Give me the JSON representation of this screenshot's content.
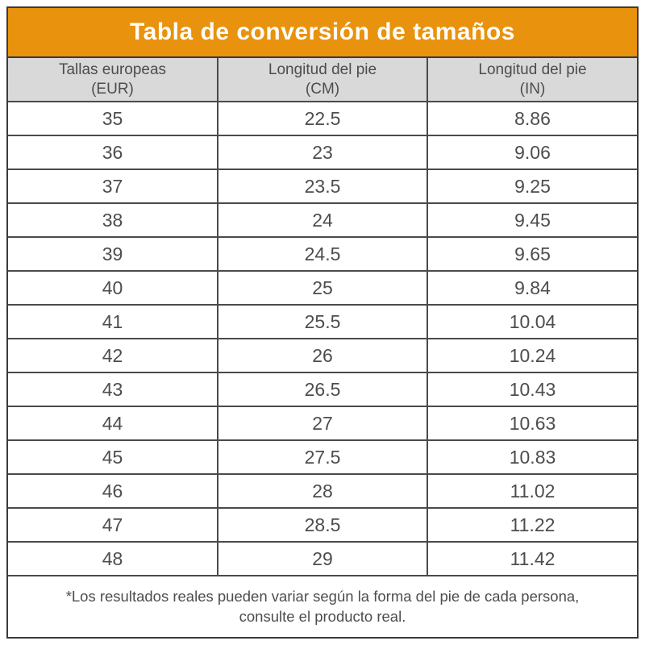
{
  "title": "Tabla de conversión de tamaños",
  "colors": {
    "title_background": "#e8920e",
    "title_text": "#fffdf8",
    "header_background": "#d9d9d9",
    "border": "#4a4a4a",
    "outer_border": "#3b3b3b",
    "body_text": "#4d4d4d"
  },
  "table": {
    "headers": [
      {
        "line1": "Tallas europeas",
        "line2": "(EUR)"
      },
      {
        "line1": "Longitud del pie",
        "line2": "(CM)"
      },
      {
        "line1": "Longitud del pie",
        "line2": "(IN)"
      }
    ],
    "rows": [
      [
        "35",
        "22.5",
        "8.86"
      ],
      [
        "36",
        "23",
        "9.06"
      ],
      [
        "37",
        "23.5",
        "9.25"
      ],
      [
        "38",
        "24",
        "9.45"
      ],
      [
        "39",
        "24.5",
        "9.65"
      ],
      [
        "40",
        "25",
        "9.84"
      ],
      [
        "41",
        "25.5",
        "10.04"
      ],
      [
        "42",
        "26",
        "10.24"
      ],
      [
        "43",
        "26.5",
        "10.43"
      ],
      [
        "44",
        "27",
        "10.63"
      ],
      [
        "45",
        "27.5",
        "10.83"
      ],
      [
        "46",
        "28",
        "11.02"
      ],
      [
        "47",
        "28.5",
        "11.22"
      ],
      [
        "48",
        "29",
        "11.42"
      ]
    ]
  },
  "footnote": {
    "line1": "*Los resultados reales pueden variar según la forma del pie de cada persona,",
    "line2": "consulte el producto real."
  },
  "chart_data": {
    "type": "table",
    "title": "Tabla de conversión de tamaños",
    "columns": [
      "Tallas europeas (EUR)",
      "Longitud del pie (CM)",
      "Longitud del pie (IN)"
    ],
    "rows": [
      [
        35,
        22.5,
        8.86
      ],
      [
        36,
        23,
        9.06
      ],
      [
        37,
        23.5,
        9.25
      ],
      [
        38,
        24,
        9.45
      ],
      [
        39,
        24.5,
        9.65
      ],
      [
        40,
        25,
        9.84
      ],
      [
        41,
        25.5,
        10.04
      ],
      [
        42,
        26,
        10.24
      ],
      [
        43,
        26.5,
        10.43
      ],
      [
        44,
        27,
        10.63
      ],
      [
        45,
        27.5,
        10.83
      ],
      [
        46,
        28,
        11.02
      ],
      [
        47,
        28.5,
        11.22
      ],
      [
        48,
        29,
        11.42
      ]
    ]
  }
}
